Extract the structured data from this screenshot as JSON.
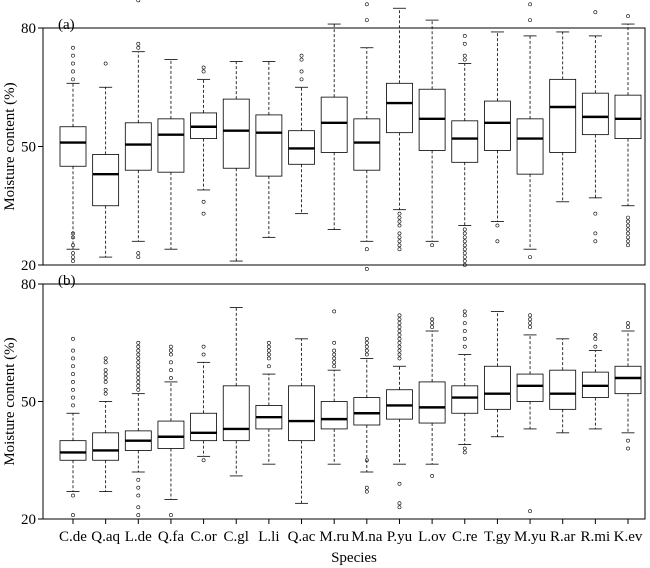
{
  "chart_data": [
    {
      "type": "boxplot",
      "panel_label": "(a)",
      "ylabel": "Moisture content (%)",
      "xlabel": "",
      "ylim": [
        20,
        80
      ],
      "yticks": [
        20,
        50,
        80
      ],
      "categories": [
        "C.de",
        "Q.aq",
        "L.de",
        "Q.fa",
        "C.or",
        "C.gl",
        "L.li",
        "Q.ac",
        "M.ru",
        "M.na",
        "P.yu",
        "L.ov",
        "C.re",
        "T.gy",
        "M.yu",
        "R.ar",
        "R.mi",
        "K.ev"
      ],
      "boxes": [
        {
          "low": 24,
          "q1": 45,
          "median": 51,
          "q3": 55,
          "high": 66,
          "outliers": [
            21,
            22,
            23,
            25,
            27,
            28,
            67,
            69,
            71,
            73,
            75
          ]
        },
        {
          "low": 22,
          "q1": 35,
          "median": 43,
          "q3": 48,
          "high": 65,
          "outliers": [
            71
          ]
        },
        {
          "low": 26,
          "q1": 44,
          "median": 50.5,
          "q3": 56,
          "high": 74,
          "outliers": [
            22,
            23,
            75,
            76,
            87
          ]
        },
        {
          "low": 24,
          "q1": 43.5,
          "median": 53,
          "q3": 57,
          "high": 72,
          "outliers": []
        },
        {
          "low": 39,
          "q1": 52,
          "median": 55,
          "q3": 58.5,
          "high": 67,
          "outliers": [
            33,
            36,
            69,
            70
          ]
        },
        {
          "low": 21,
          "q1": 44.5,
          "median": 54,
          "q3": 62,
          "high": 71.5,
          "outliers": []
        },
        {
          "low": 27,
          "q1": 42.5,
          "median": 53.5,
          "q3": 58,
          "high": 71.5,
          "outliers": []
        },
        {
          "low": 33,
          "q1": 45.5,
          "median": 49.5,
          "q3": 54,
          "high": 65,
          "outliers": [
            67,
            69,
            72,
            73
          ]
        },
        {
          "low": 29,
          "q1": 48.5,
          "median": 56,
          "q3": 62.5,
          "high": 81,
          "outliers": []
        },
        {
          "low": 26,
          "q1": 44,
          "median": 51,
          "q3": 57,
          "high": 75,
          "outliers": [
            19,
            24,
            82,
            86
          ]
        },
        {
          "low": 34,
          "q1": 53.5,
          "median": 61,
          "q3": 66,
          "high": 85,
          "outliers": [
            24,
            25,
            26,
            27,
            28,
            30,
            31,
            32,
            33
          ]
        },
        {
          "low": 26,
          "q1": 49,
          "median": 57,
          "q3": 64.5,
          "high": 82,
          "outliers": [
            25
          ]
        },
        {
          "low": 30,
          "q1": 46,
          "median": 52,
          "q3": 56.5,
          "high": 71,
          "outliers": [
            20,
            21,
            22,
            23,
            24,
            25,
            26,
            27,
            28,
            29,
            72,
            73,
            76,
            78
          ]
        },
        {
          "low": 31,
          "q1": 49,
          "median": 56,
          "q3": 61.5,
          "high": 79,
          "outliers": [
            26,
            30
          ]
        },
        {
          "low": 24,
          "q1": 43,
          "median": 52,
          "q3": 57,
          "high": 78,
          "outliers": [
            22,
            82,
            86
          ]
        },
        {
          "low": 36,
          "q1": 48.5,
          "median": 60,
          "q3": 67,
          "high": 79,
          "outliers": []
        },
        {
          "low": 37,
          "q1": 53,
          "median": 57.5,
          "q3": 63.5,
          "high": 78,
          "outliers": [
            26,
            28,
            33,
            84
          ]
        },
        {
          "low": 35,
          "q1": 52,
          "median": 57,
          "q3": 63,
          "high": 81,
          "outliers": [
            25,
            26,
            27,
            28,
            29,
            30,
            31,
            32,
            83
          ]
        }
      ]
    },
    {
      "type": "boxplot",
      "panel_label": "(b)",
      "ylabel": "Moisture content (%)",
      "xlabel": "Species",
      "ylim": [
        20,
        80
      ],
      "yticks": [
        20,
        50,
        80
      ],
      "categories": [
        "C.de",
        "Q.aq",
        "L.de",
        "Q.fa",
        "C.or",
        "C.gl",
        "L.li",
        "Q.ac",
        "M.ru",
        "M.na",
        "P.yu",
        "L.ov",
        "C.re",
        "T.gy",
        "M.yu",
        "R.ar",
        "R.mi",
        "K.ev"
      ],
      "boxes": [
        {
          "low": 27,
          "q1": 35,
          "median": 37,
          "q3": 40,
          "high": 47,
          "outliers": [
            21,
            26,
            49,
            51,
            53,
            55,
            57,
            59,
            61,
            63,
            66
          ]
        },
        {
          "low": 27,
          "q1": 35,
          "median": 37.5,
          "q3": 42,
          "high": 50,
          "outliers": [
            52,
            53,
            55,
            56,
            57,
            58,
            60,
            61
          ]
        },
        {
          "low": 32,
          "q1": 37.5,
          "median": 40,
          "q3": 42.5,
          "high": 52,
          "outliers": [
            21,
            23,
            26,
            28,
            30,
            53,
            54,
            55,
            56,
            57,
            58,
            59,
            60,
            61,
            62,
            63,
            64,
            65
          ]
        },
        {
          "low": 25,
          "q1": 38,
          "median": 41,
          "q3": 45,
          "high": 55,
          "outliers": [
            21,
            56,
            58,
            60,
            62,
            63,
            64
          ]
        },
        {
          "low": 36,
          "q1": 40,
          "median": 42,
          "q3": 47,
          "high": 60,
          "outliers": [
            35,
            62,
            64
          ]
        },
        {
          "low": 31,
          "q1": 40,
          "median": 43,
          "q3": 54,
          "high": 74,
          "outliers": []
        },
        {
          "low": 34,
          "q1": 43,
          "median": 46,
          "q3": 49,
          "high": 57,
          "outliers": [
            59,
            61,
            62,
            63,
            64,
            65
          ]
        },
        {
          "low": 24,
          "q1": 40,
          "median": 45,
          "q3": 54,
          "high": 66,
          "outliers": []
        },
        {
          "low": 34,
          "q1": 43,
          "median": 45.5,
          "q3": 50,
          "high": 58,
          "outliers": [
            59,
            60,
            61,
            62,
            63,
            65,
            73
          ]
        },
        {
          "low": 32,
          "q1": 44,
          "median": 47,
          "q3": 51,
          "high": 61,
          "outliers": [
            27,
            28,
            35,
            62,
            63,
            64,
            65,
            66
          ]
        },
        {
          "low": 34,
          "q1": 45.5,
          "median": 49,
          "q3": 53,
          "high": 59,
          "outliers": [
            23,
            24,
            29,
            61,
            62,
            63,
            64,
            65,
            66,
            67,
            68,
            69,
            70,
            71,
            72
          ]
        },
        {
          "low": 34,
          "q1": 44.5,
          "median": 48.5,
          "q3": 55,
          "high": 68,
          "outliers": [
            31,
            69,
            70,
            71
          ]
        },
        {
          "low": 39,
          "q1": 47,
          "median": 51,
          "q3": 54,
          "high": 62,
          "outliers": [
            37,
            38,
            64,
            66,
            68,
            70,
            72,
            73
          ]
        },
        {
          "low": 41,
          "q1": 48,
          "median": 52,
          "q3": 59,
          "high": 73,
          "outliers": []
        },
        {
          "low": 43,
          "q1": 50,
          "median": 54,
          "q3": 57,
          "high": 67,
          "outliers": [
            22,
            69,
            70,
            71,
            72
          ]
        },
        {
          "low": 42,
          "q1": 48,
          "median": 52,
          "q3": 58,
          "high": 66,
          "outliers": []
        },
        {
          "low": 43,
          "q1": 51,
          "median": 54,
          "q3": 57.5,
          "high": 63,
          "outliers": [
            64,
            66,
            67
          ]
        },
        {
          "low": 42,
          "q1": 52,
          "median": 56,
          "q3": 59,
          "high": 68,
          "outliers": [
            38,
            40,
            69,
            70
          ]
        }
      ]
    }
  ]
}
